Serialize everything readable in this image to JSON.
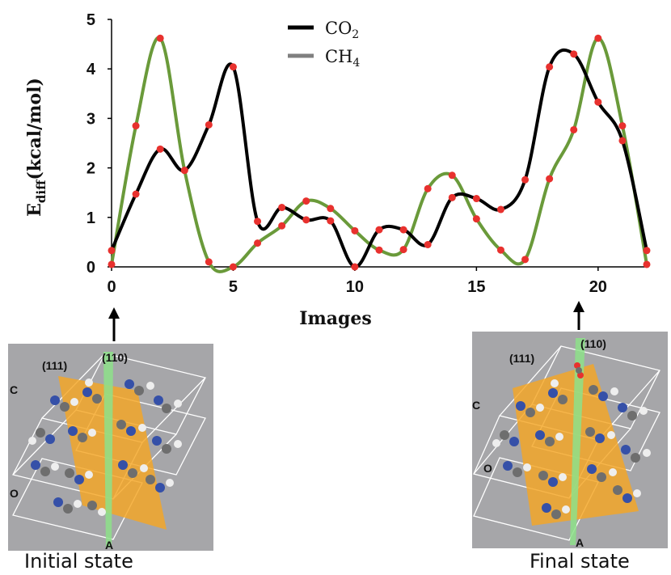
{
  "chart_data": {
    "type": "line",
    "xlabel": "Images",
    "ylabel_main": "E",
    "ylabel_sub": "diff",
    "ylabel_unit": "(kcal/mol)",
    "xlim": [
      0,
      22
    ],
    "ylim": [
      0,
      5
    ],
    "xticks": [
      "0",
      "5",
      "10",
      "15",
      "20"
    ],
    "xtick_values": [
      0,
      5,
      10,
      15,
      20
    ],
    "yticks": [
      "0",
      "1",
      "2",
      "3",
      "4",
      "5"
    ],
    "ytick_values": [
      0,
      1,
      2,
      3,
      4,
      5
    ],
    "grid": false,
    "legend_position": "top-center",
    "series": [
      {
        "name_main": "CO",
        "name_sub": "2",
        "color": "#000000",
        "x": [
          0,
          1,
          2,
          3,
          4,
          5,
          6,
          7,
          8,
          9,
          10,
          11,
          12,
          13,
          14,
          15,
          16,
          17,
          18,
          19,
          20,
          21,
          22
        ],
        "values": [
          0.33,
          1.47,
          2.38,
          1.95,
          2.87,
          4.04,
          0.92,
          1.2,
          0.95,
          0.93,
          0.0,
          0.75,
          0.75,
          0.45,
          1.4,
          1.38,
          1.16,
          1.76,
          4.04,
          4.3,
          3.33,
          2.55,
          0.33
        ]
      },
      {
        "name_main": "CH",
        "name_sub": "4",
        "color": "#6a9a3a",
        "x": [
          0,
          1,
          2,
          3,
          4,
          5,
          6,
          7,
          8,
          9,
          10,
          11,
          12,
          13,
          14,
          15,
          16,
          17,
          18,
          19,
          20,
          21,
          22
        ],
        "values": [
          0.05,
          2.85,
          4.62,
          1.95,
          0.1,
          0.0,
          0.48,
          0.83,
          1.33,
          1.18,
          0.73,
          0.34,
          0.35,
          1.58,
          1.85,
          0.97,
          0.34,
          0.15,
          1.78,
          2.77,
          4.62,
          2.85,
          0.05
        ]
      }
    ],
    "marker_color": "#e8312e"
  },
  "panels": {
    "initial": {
      "caption": "Initial state",
      "plane1": "(111)",
      "plane2": "(110)",
      "axis_c": "C",
      "axis_o": "O",
      "axis_a": "A"
    },
    "final": {
      "caption": "Final state",
      "plane1": "(111)",
      "plane2": "(110)",
      "axis_c": "C",
      "axis_o": "O",
      "axis_a": "A"
    }
  }
}
